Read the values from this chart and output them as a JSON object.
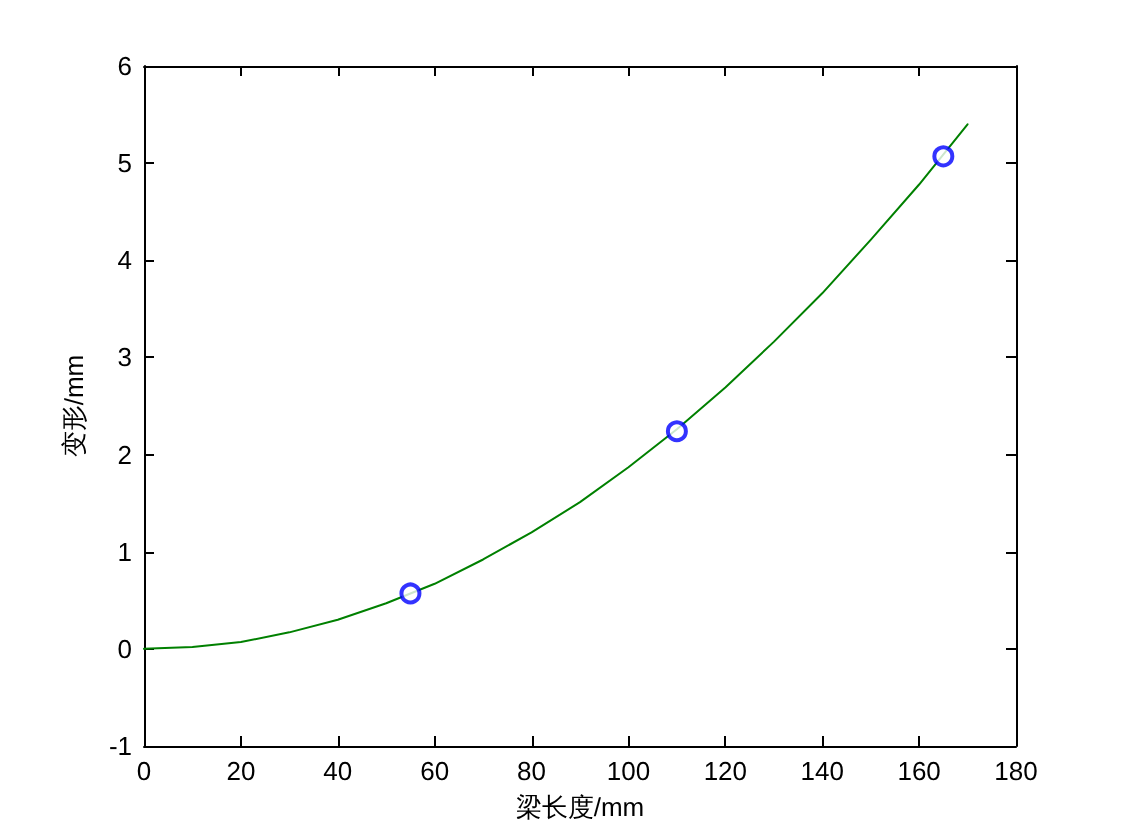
{
  "chart_data": {
    "type": "line",
    "xlabel": "梁长度/mm",
    "ylabel": "变形/mm",
    "xlim": [
      0,
      180
    ],
    "xticks": [
      0,
      20,
      40,
      60,
      80,
      100,
      120,
      140,
      160,
      180
    ],
    "ylim": [
      -1,
      6
    ],
    "yticks": [
      -1,
      0,
      1,
      2,
      3,
      4,
      5,
      6
    ],
    "series": [
      {
        "color": "#008000",
        "x": [
          0,
          10,
          20,
          30,
          40,
          50,
          60,
          70,
          80,
          90,
          100,
          110,
          120,
          130,
          140,
          150,
          160,
          170
        ],
        "values": [
          0,
          0.02,
          0.07,
          0.17,
          0.3,
          0.47,
          0.67,
          0.92,
          1.2,
          1.51,
          1.87,
          2.26,
          2.69,
          3.16,
          3.66,
          4.21,
          4.78,
          5.4
        ]
      },
      {
        "type": "scatter",
        "color": "#0000ff",
        "marker": "circle",
        "x": [
          55,
          110,
          165
        ],
        "values": [
          0.57,
          2.24,
          5.07
        ]
      }
    ]
  }
}
